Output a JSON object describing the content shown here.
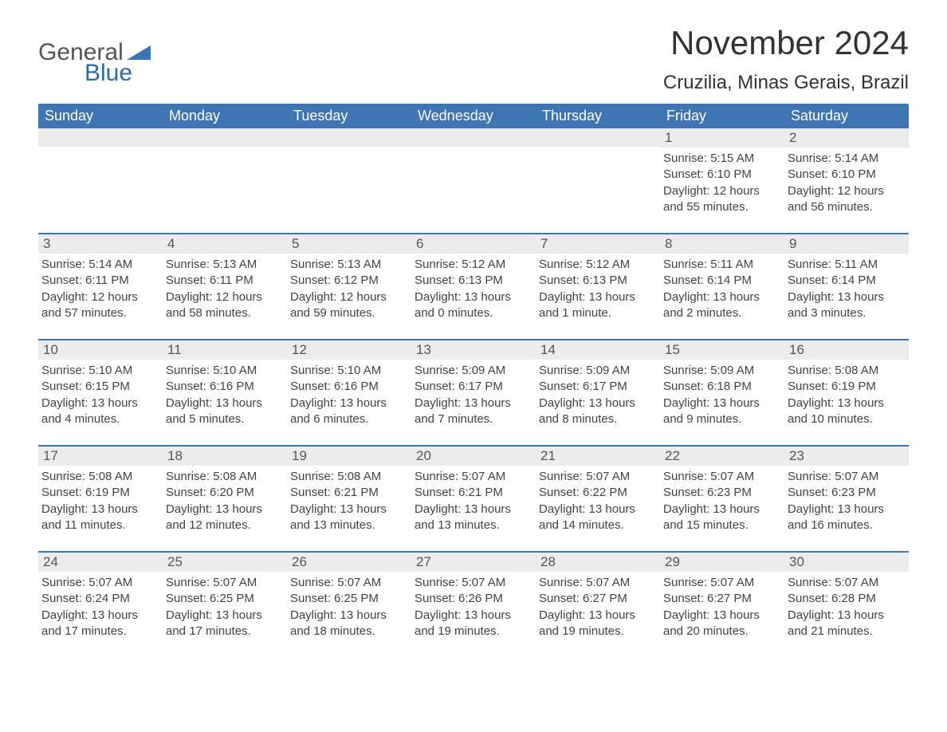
{
  "logo": {
    "text1": "General",
    "text2": "Blue"
  },
  "header": {
    "month_title": "November 2024",
    "location": "Cruzilia, Minas Gerais, Brazil"
  },
  "colors": {
    "header_bg": "#3e76b3",
    "header_text": "#ffffff",
    "daynum_bg": "#ececec",
    "body_text": "#333333",
    "page_bg": "#ffffff"
  },
  "calendar": {
    "day_names": [
      "Sunday",
      "Monday",
      "Tuesday",
      "Wednesday",
      "Thursday",
      "Friday",
      "Saturday"
    ],
    "weeks": [
      [
        null,
        null,
        null,
        null,
        null,
        {
          "day": "1",
          "sunrise": "Sunrise: 5:15 AM",
          "sunset": "Sunset: 6:10 PM",
          "daylight": "Daylight: 12 hours and 55 minutes."
        },
        {
          "day": "2",
          "sunrise": "Sunrise: 5:14 AM",
          "sunset": "Sunset: 6:10 PM",
          "daylight": "Daylight: 12 hours and 56 minutes."
        }
      ],
      [
        {
          "day": "3",
          "sunrise": "Sunrise: 5:14 AM",
          "sunset": "Sunset: 6:11 PM",
          "daylight": "Daylight: 12 hours and 57 minutes."
        },
        {
          "day": "4",
          "sunrise": "Sunrise: 5:13 AM",
          "sunset": "Sunset: 6:11 PM",
          "daylight": "Daylight: 12 hours and 58 minutes."
        },
        {
          "day": "5",
          "sunrise": "Sunrise: 5:13 AM",
          "sunset": "Sunset: 6:12 PM",
          "daylight": "Daylight: 12 hours and 59 minutes."
        },
        {
          "day": "6",
          "sunrise": "Sunrise: 5:12 AM",
          "sunset": "Sunset: 6:13 PM",
          "daylight": "Daylight: 13 hours and 0 minutes."
        },
        {
          "day": "7",
          "sunrise": "Sunrise: 5:12 AM",
          "sunset": "Sunset: 6:13 PM",
          "daylight": "Daylight: 13 hours and 1 minute."
        },
        {
          "day": "8",
          "sunrise": "Sunrise: 5:11 AM",
          "sunset": "Sunset: 6:14 PM",
          "daylight": "Daylight: 13 hours and 2 minutes."
        },
        {
          "day": "9",
          "sunrise": "Sunrise: 5:11 AM",
          "sunset": "Sunset: 6:14 PM",
          "daylight": "Daylight: 13 hours and 3 minutes."
        }
      ],
      [
        {
          "day": "10",
          "sunrise": "Sunrise: 5:10 AM",
          "sunset": "Sunset: 6:15 PM",
          "daylight": "Daylight: 13 hours and 4 minutes."
        },
        {
          "day": "11",
          "sunrise": "Sunrise: 5:10 AM",
          "sunset": "Sunset: 6:16 PM",
          "daylight": "Daylight: 13 hours and 5 minutes."
        },
        {
          "day": "12",
          "sunrise": "Sunrise: 5:10 AM",
          "sunset": "Sunset: 6:16 PM",
          "daylight": "Daylight: 13 hours and 6 minutes."
        },
        {
          "day": "13",
          "sunrise": "Sunrise: 5:09 AM",
          "sunset": "Sunset: 6:17 PM",
          "daylight": "Daylight: 13 hours and 7 minutes."
        },
        {
          "day": "14",
          "sunrise": "Sunrise: 5:09 AM",
          "sunset": "Sunset: 6:17 PM",
          "daylight": "Daylight: 13 hours and 8 minutes."
        },
        {
          "day": "15",
          "sunrise": "Sunrise: 5:09 AM",
          "sunset": "Sunset: 6:18 PM",
          "daylight": "Daylight: 13 hours and 9 minutes."
        },
        {
          "day": "16",
          "sunrise": "Sunrise: 5:08 AM",
          "sunset": "Sunset: 6:19 PM",
          "daylight": "Daylight: 13 hours and 10 minutes."
        }
      ],
      [
        {
          "day": "17",
          "sunrise": "Sunrise: 5:08 AM",
          "sunset": "Sunset: 6:19 PM",
          "daylight": "Daylight: 13 hours and 11 minutes."
        },
        {
          "day": "18",
          "sunrise": "Sunrise: 5:08 AM",
          "sunset": "Sunset: 6:20 PM",
          "daylight": "Daylight: 13 hours and 12 minutes."
        },
        {
          "day": "19",
          "sunrise": "Sunrise: 5:08 AM",
          "sunset": "Sunset: 6:21 PM",
          "daylight": "Daylight: 13 hours and 13 minutes."
        },
        {
          "day": "20",
          "sunrise": "Sunrise: 5:07 AM",
          "sunset": "Sunset: 6:21 PM",
          "daylight": "Daylight: 13 hours and 13 minutes."
        },
        {
          "day": "21",
          "sunrise": "Sunrise: 5:07 AM",
          "sunset": "Sunset: 6:22 PM",
          "daylight": "Daylight: 13 hours and 14 minutes."
        },
        {
          "day": "22",
          "sunrise": "Sunrise: 5:07 AM",
          "sunset": "Sunset: 6:23 PM",
          "daylight": "Daylight: 13 hours and 15 minutes."
        },
        {
          "day": "23",
          "sunrise": "Sunrise: 5:07 AM",
          "sunset": "Sunset: 6:23 PM",
          "daylight": "Daylight: 13 hours and 16 minutes."
        }
      ],
      [
        {
          "day": "24",
          "sunrise": "Sunrise: 5:07 AM",
          "sunset": "Sunset: 6:24 PM",
          "daylight": "Daylight: 13 hours and 17 minutes."
        },
        {
          "day": "25",
          "sunrise": "Sunrise: 5:07 AM",
          "sunset": "Sunset: 6:25 PM",
          "daylight": "Daylight: 13 hours and 17 minutes."
        },
        {
          "day": "26",
          "sunrise": "Sunrise: 5:07 AM",
          "sunset": "Sunset: 6:25 PM",
          "daylight": "Daylight: 13 hours and 18 minutes."
        },
        {
          "day": "27",
          "sunrise": "Sunrise: 5:07 AM",
          "sunset": "Sunset: 6:26 PM",
          "daylight": "Daylight: 13 hours and 19 minutes."
        },
        {
          "day": "28",
          "sunrise": "Sunrise: 5:07 AM",
          "sunset": "Sunset: 6:27 PM",
          "daylight": "Daylight: 13 hours and 19 minutes."
        },
        {
          "day": "29",
          "sunrise": "Sunrise: 5:07 AM",
          "sunset": "Sunset: 6:27 PM",
          "daylight": "Daylight: 13 hours and 20 minutes."
        },
        {
          "day": "30",
          "sunrise": "Sunrise: 5:07 AM",
          "sunset": "Sunset: 6:28 PM",
          "daylight": "Daylight: 13 hours and 21 minutes."
        }
      ]
    ]
  }
}
